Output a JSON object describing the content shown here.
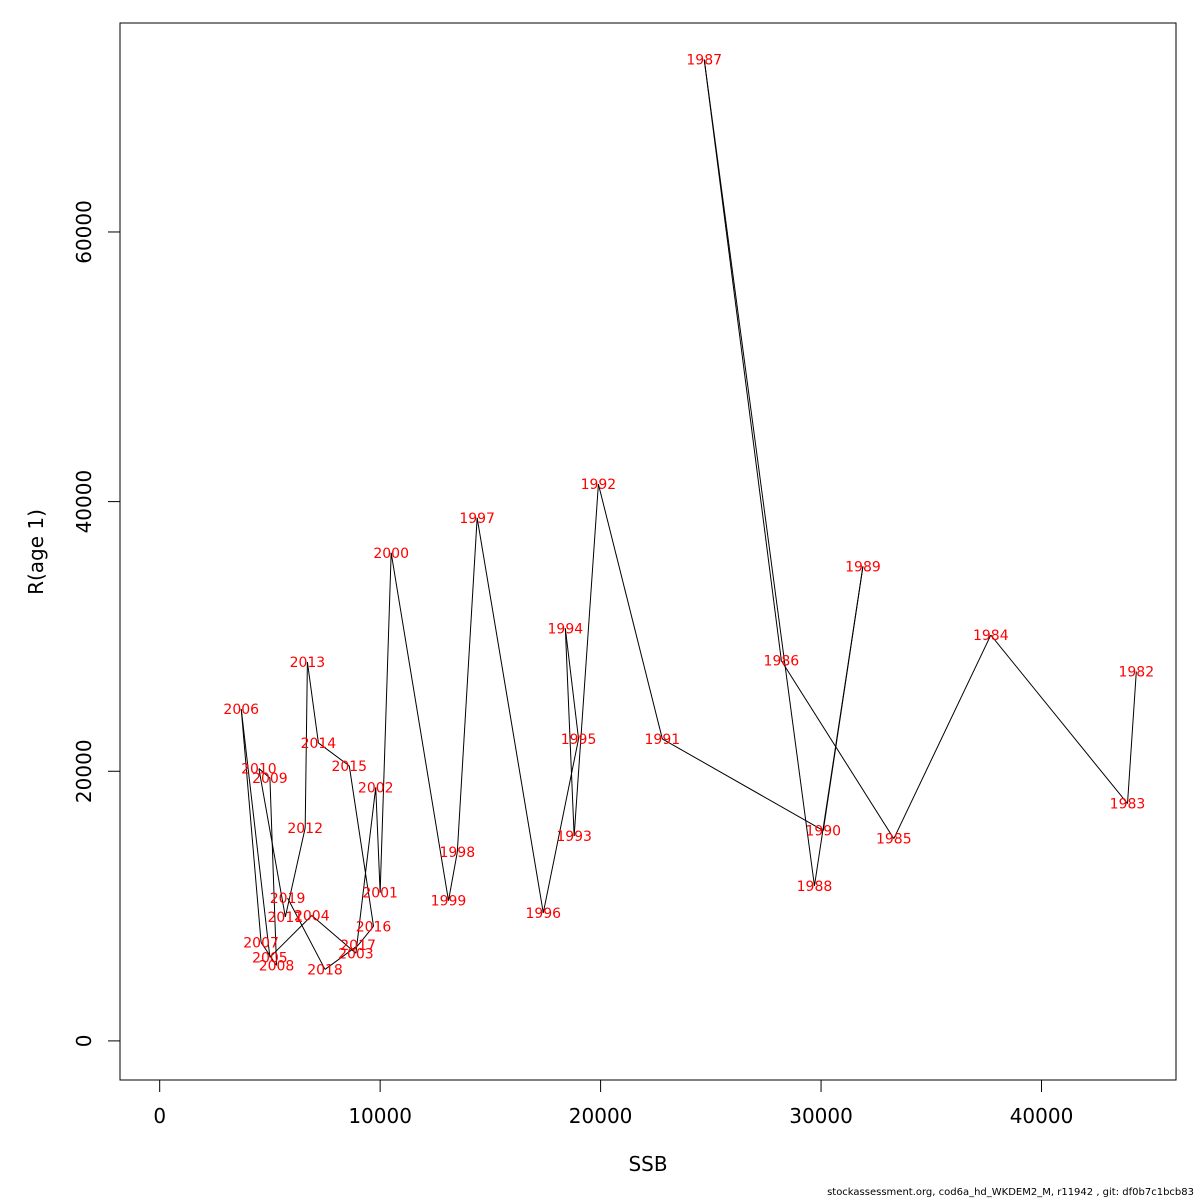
{
  "chart_data": {
    "type": "line",
    "xlabel": "SSB",
    "ylabel": "R(age 1)",
    "xlim": [
      -1800,
      46100
    ],
    "ylim": [
      -2900,
      75500
    ],
    "x_ticks": [
      0,
      10000,
      20000,
      30000,
      40000
    ],
    "y_ticks": [
      0,
      20000,
      40000,
      60000
    ],
    "x_tick_labels": [
      "0",
      "10000",
      "20000",
      "30000",
      "40000"
    ],
    "y_tick_labels": [
      "0",
      "20000",
      "40000",
      "60000"
    ],
    "grid": false,
    "legend": "none",
    "line_color": "#000000",
    "label_color": "#ff0000",
    "points": [
      {
        "year": "1982",
        "x": 44300,
        "y": 27400
      },
      {
        "year": "1983",
        "x": 43900,
        "y": 17600
      },
      {
        "year": "1984",
        "x": 37700,
        "y": 30100
      },
      {
        "year": "1985",
        "x": 33300,
        "y": 15000
      },
      {
        "year": "1986",
        "x": 28200,
        "y": 28200
      },
      {
        "year": "1987",
        "x": 24700,
        "y": 72800
      },
      {
        "year": "1988",
        "x": 29700,
        "y": 11500
      },
      {
        "year": "1989",
        "x": 31900,
        "y": 35200
      },
      {
        "year": "1990",
        "x": 30100,
        "y": 15600
      },
      {
        "year": "1991",
        "x": 22800,
        "y": 22400
      },
      {
        "year": "1992",
        "x": 19900,
        "y": 41300
      },
      {
        "year": "1993",
        "x": 18800,
        "y": 15200
      },
      {
        "year": "1994",
        "x": 18400,
        "y": 30600
      },
      {
        "year": "1995",
        "x": 19000,
        "y": 22400
      },
      {
        "year": "1996",
        "x": 17400,
        "y": 9500
      },
      {
        "year": "1997",
        "x": 14400,
        "y": 38800
      },
      {
        "year": "1998",
        "x": 13500,
        "y": 14000
      },
      {
        "year": "1999",
        "x": 13100,
        "y": 10400
      },
      {
        "year": "2000",
        "x": 10500,
        "y": 36200
      },
      {
        "year": "2001",
        "x": 10000,
        "y": 11000
      },
      {
        "year": "2002",
        "x": 9800,
        "y": 18800
      },
      {
        "year": "2003",
        "x": 8900,
        "y": 6500
      },
      {
        "year": "2004",
        "x": 6900,
        "y": 9300
      },
      {
        "year": "2005",
        "x": 5000,
        "y": 6200
      },
      {
        "year": "2006",
        "x": 3700,
        "y": 24600
      },
      {
        "year": "2007",
        "x": 4600,
        "y": 7300
      },
      {
        "year": "2008",
        "x": 5300,
        "y": 5600
      },
      {
        "year": "2009",
        "x": 5000,
        "y": 19500
      },
      {
        "year": "2010",
        "x": 4500,
        "y": 20200
      },
      {
        "year": "2011",
        "x": 5700,
        "y": 9200
      },
      {
        "year": "2012",
        "x": 6600,
        "y": 15800
      },
      {
        "year": "2013",
        "x": 6700,
        "y": 28100
      },
      {
        "year": "2014",
        "x": 7200,
        "y": 22100
      },
      {
        "year": "2015",
        "x": 8600,
        "y": 20400
      },
      {
        "year": "2016",
        "x": 9700,
        "y": 8500
      },
      {
        "year": "2017",
        "x": 9000,
        "y": 7100
      },
      {
        "year": "2018",
        "x": 7500,
        "y": 5300
      },
      {
        "year": "2019",
        "x": 5800,
        "y": 10600
      }
    ]
  },
  "footer": "stockassessment.org, cod6a_hd_WKDEM2_M, r11942 , git: df0b7c1bcb83"
}
